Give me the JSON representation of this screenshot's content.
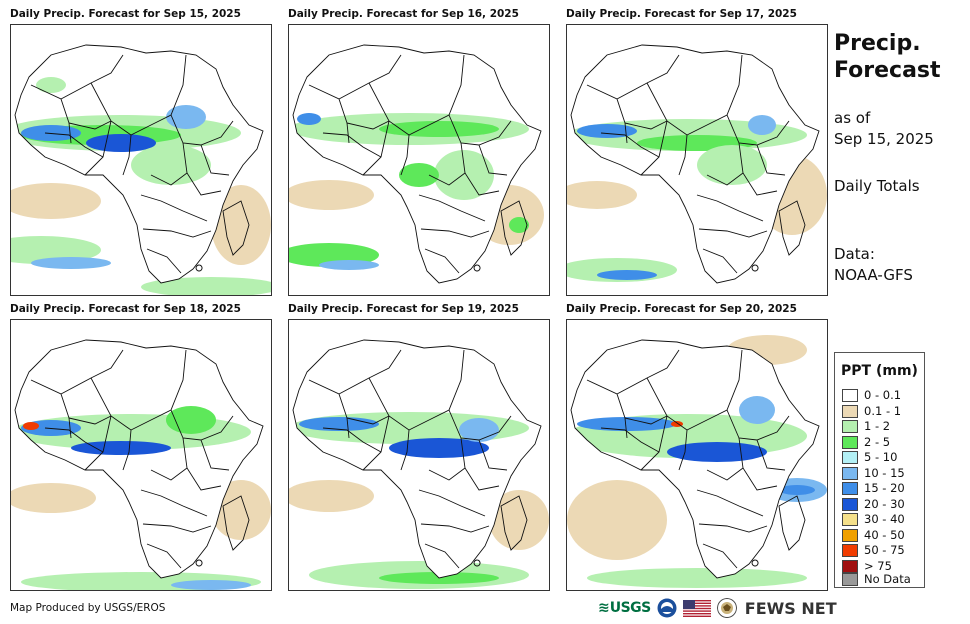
{
  "panels": [
    {
      "title": "Daily Precip. Forecast for Sep 15, 2025"
    },
    {
      "title": "Daily Precip. Forecast for Sep 16, 2025"
    },
    {
      "title": "Daily Precip. Forecast for Sep 17, 2025"
    },
    {
      "title": "Daily Precip. Forecast for Sep 18, 2025"
    },
    {
      "title": "Daily Precip. Forecast for Sep 19, 2025"
    },
    {
      "title": "Daily Precip. Forecast for Sep 20, 2025"
    }
  ],
  "side": {
    "title_line1": "Precip.",
    "title_line2": "Forecast",
    "as_of_line1": "as of",
    "as_of_line2": "Sep 15, 2025",
    "totals": "Daily Totals",
    "data_label": "Data:",
    "data_source": "NOAA-GFS"
  },
  "legend": {
    "title": "PPT (mm)",
    "items": [
      {
        "label": "0 - 0.1",
        "color": "#ffffff"
      },
      {
        "label": "0.1 - 1",
        "color": "#ecd9b5"
      },
      {
        "label": "1 - 2",
        "color": "#b5f0b0"
      },
      {
        "label": "2 - 5",
        "color": "#5ee85a"
      },
      {
        "label": "5 - 10",
        "color": "#b3f0f5"
      },
      {
        "label": "10 - 15",
        "color": "#7ab8f0"
      },
      {
        "label": "15 - 20",
        "color": "#3f8ee8"
      },
      {
        "label": "20 - 30",
        "color": "#1a56d6"
      },
      {
        "label": "30 - 40",
        "color": "#f5e08a"
      },
      {
        "label": "40 - 50",
        "color": "#f0a000"
      },
      {
        "label": "50 - 75",
        "color": "#f03c00"
      },
      {
        "label": "> 75",
        "color": "#a01010"
      },
      {
        "label": "No Data",
        "color": "#999999"
      }
    ]
  },
  "footer": {
    "credit": "Map Produced by USGS/EROS",
    "usgs_label": "USGS",
    "fews_label": "FEWS NET"
  }
}
